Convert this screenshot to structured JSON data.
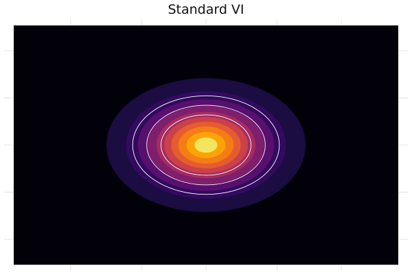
{
  "chart_data": {
    "type": "heatmap",
    "subtype": "filled-contour",
    "title": "Standard VI",
    "xlabel": "",
    "ylabel": "",
    "colormap": "inferno",
    "background_color": "#02010a",
    "density": {
      "shape": "gaussian-2d",
      "mean": [
        0,
        0
      ],
      "std": [
        0.5,
        0.33
      ]
    },
    "xlim": [
      -2.7,
      2.7
    ],
    "ylim": [
      -1.65,
      1.65
    ],
    "filled_levels": [
      0.02,
      0.08,
      0.16,
      0.26,
      0.38,
      0.5,
      0.62,
      0.74,
      0.86,
      0.95
    ],
    "level_colors": [
      "#1b0c41",
      "#320a5e",
      "#57106e",
      "#7f1e6c",
      "#a52c60",
      "#cb4149",
      "#e55c30",
      "#f57d15",
      "#fba40a",
      "#f3e55d"
    ],
    "line_levels": [
      0.12,
      0.25,
      0.45
    ],
    "line_color": "#ffffff",
    "grid": true
  }
}
